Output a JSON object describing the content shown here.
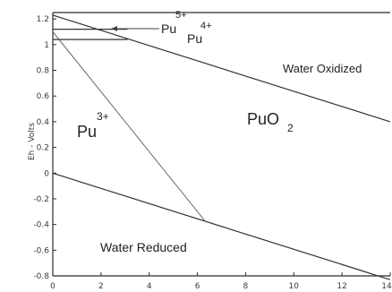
{
  "chart_data": {
    "type": "line",
    "title": "",
    "xlabel": "",
    "ylabel": "Eh - Volts",
    "xlim": [
      0,
      14
    ],
    "ylim": [
      -0.8,
      1.25
    ],
    "x_ticks": [
      "0",
      "2",
      "4",
      "6",
      "8",
      "10",
      "12",
      "14"
    ],
    "y_ticks": [
      "-0.8",
      "-0.6",
      "-0.4",
      "-0.2",
      "0",
      "0.2",
      "0.4",
      "0.6",
      "0.8",
      "1",
      "1.2"
    ],
    "series": [
      {
        "points": [
          [
            0,
            1.23
          ],
          [
            14,
            0.4
          ]
        ]
      },
      {
        "points": [
          [
            0,
            0.0
          ],
          [
            14,
            -0.83
          ]
        ]
      },
      {
        "points": [
          [
            0,
            1.1
          ],
          [
            6.3,
            -0.37
          ]
        ]
      },
      {
        "points": [
          [
            0,
            1.04
          ],
          [
            3.1,
            1.04
          ]
        ]
      },
      {
        "points": [
          [
            0,
            1.12
          ],
          [
            3.1,
            1.12
          ]
        ]
      }
    ],
    "annotations": {
      "water_oxidized": "Water Oxidized",
      "water_reduced": "Water Reduced",
      "puo2_base": "PuO",
      "puo2_sub": "2",
      "pu3_base": "Pu",
      "pu3_sup": "3+",
      "pu4_base": "Pu",
      "pu4_sup": "4+",
      "pu5_base": "Pu",
      "pu5_sup": "5+"
    }
  }
}
